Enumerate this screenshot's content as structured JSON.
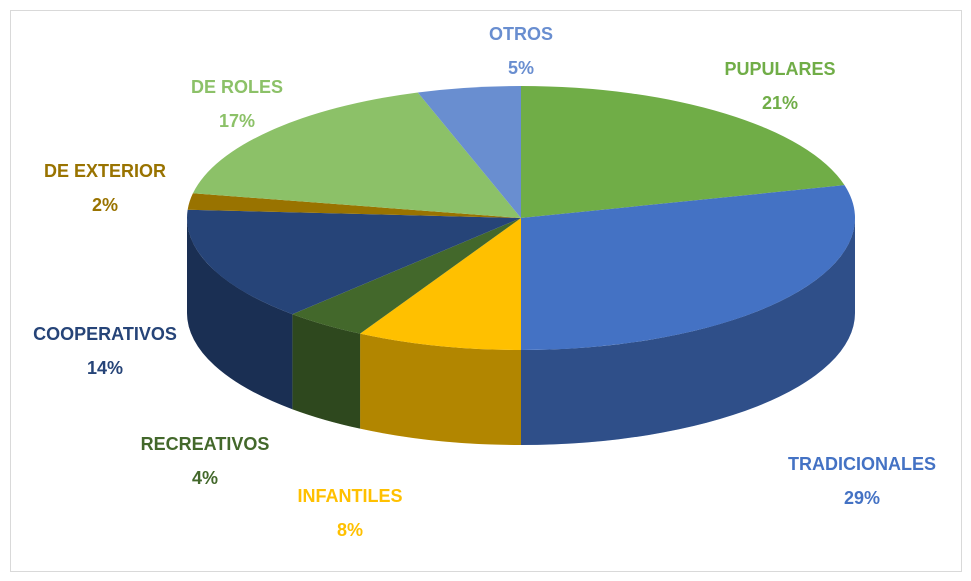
{
  "chart_data": {
    "type": "pie",
    "categories": [
      "PUPULARES",
      "TRADICIONALES",
      "INFANTILES",
      "RECREATIVOS",
      "COOPERATIVOS",
      "DE EXTERIOR",
      "DE ROLES",
      "OTROS"
    ],
    "values": [
      21,
      29,
      8,
      4,
      14,
      2,
      17,
      5
    ],
    "value_labels": [
      "21%",
      "29%",
      "8%",
      "4%",
      "14%",
      "2%",
      "17%",
      "5%"
    ],
    "colors": [
      "#70ad47",
      "#4472c4",
      "#ffc000",
      "#43682b",
      "#264478",
      "#997300",
      "#8cc168",
      "#698ed0"
    ]
  }
}
